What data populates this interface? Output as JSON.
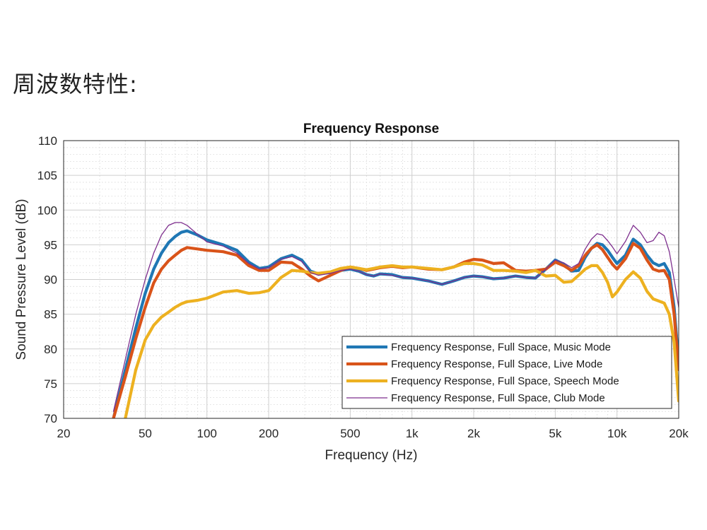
{
  "page": {
    "heading": "周波数特性:"
  },
  "chart_data": {
    "type": "line",
    "title": "Frequency Response",
    "xlabel": "Frequency (Hz)",
    "ylabel": "Sound Pressure Level (dB)",
    "xscale": "log",
    "xlim": [
      20,
      20000
    ],
    "ylim": [
      70,
      110
    ],
    "grid": true,
    "minor_grid": true,
    "x_ticks": [
      {
        "value": 20,
        "label": "20"
      },
      {
        "value": 50,
        "label": "50"
      },
      {
        "value": 100,
        "label": "100"
      },
      {
        "value": 200,
        "label": "200"
      },
      {
        "value": 500,
        "label": "500"
      },
      {
        "value": 1000,
        "label": "1k"
      },
      {
        "value": 2000,
        "label": "2k"
      },
      {
        "value": 5000,
        "label": "5k"
      },
      {
        "value": 10000,
        "label": "10k"
      },
      {
        "value": 20000,
        "label": "20k"
      }
    ],
    "y_ticks": [
      70,
      75,
      80,
      85,
      90,
      95,
      100,
      105,
      110
    ],
    "legend_position": "bottom-right",
    "series": [
      {
        "name": "Frequency Response, Full Space, Music Mode",
        "color": "#1f77b4",
        "width": "thick",
        "x": [
          35,
          40,
          45,
          50,
          55,
          60,
          65,
          70,
          75,
          80,
          90,
          100,
          120,
          140,
          160,
          180,
          200,
          230,
          260,
          290,
          320,
          350,
          400,
          450,
          500,
          550,
          600,
          650,
          700,
          800,
          900,
          1000,
          1200,
          1400,
          1600,
          1800,
          2000,
          2200,
          2500,
          2800,
          3200,
          3600,
          4000,
          4500,
          5000,
          5500,
          6000,
          6500,
          7000,
          7500,
          8000,
          8500,
          9000,
          9500,
          10000,
          11000,
          12000,
          13000,
          14000,
          15000,
          16000,
          17000,
          18000,
          19000,
          20000
        ],
        "y": [
          70,
          77,
          83,
          88,
          91.5,
          93.8,
          95.3,
          96.2,
          96.8,
          97,
          96.4,
          95.7,
          95,
          94.2,
          92.5,
          91.6,
          91.8,
          93,
          93.5,
          92.8,
          91.2,
          90.8,
          91,
          91.3,
          91.5,
          91.2,
          90.7,
          90.5,
          90.8,
          90.7,
          90.3,
          90.2,
          89.8,
          89.3,
          89.8,
          90.3,
          90.5,
          90.4,
          90.1,
          90.2,
          90.5,
          90.3,
          90.2,
          91.5,
          92.8,
          92.2,
          91.2,
          91.3,
          93.2,
          94.5,
          95.2,
          95,
          94.2,
          93.2,
          92.3,
          93.5,
          95.8,
          95,
          93.5,
          92.4,
          92,
          92.3,
          91,
          86,
          78
        ]
      },
      {
        "name": "Frequency Response, Full Space, Live Mode",
        "color": "#d95319",
        "width": "thick",
        "x": [
          35,
          40,
          45,
          50,
          55,
          60,
          65,
          70,
          75,
          80,
          90,
          100,
          120,
          140,
          160,
          180,
          200,
          230,
          260,
          290,
          320,
          350,
          400,
          450,
          500,
          550,
          600,
          650,
          700,
          800,
          900,
          1000,
          1200,
          1400,
          1600,
          1800,
          2000,
          2200,
          2500,
          2800,
          3200,
          3600,
          4000,
          4500,
          5000,
          5500,
          6000,
          6500,
          7000,
          7500,
          8000,
          8500,
          9000,
          9500,
          10000,
          11000,
          12000,
          13000,
          14000,
          15000,
          16000,
          17000,
          18000,
          19000,
          20000
        ],
        "y": [
          70,
          76,
          81.5,
          86,
          89.5,
          91.5,
          92.7,
          93.5,
          94.2,
          94.6,
          94.4,
          94.2,
          94,
          93.5,
          92,
          91.3,
          91.3,
          92.5,
          92.4,
          91.5,
          90.5,
          89.8,
          90.6,
          91.3,
          91.8,
          91.6,
          91.3,
          91.5,
          91.7,
          91.9,
          91.7,
          91.8,
          91.5,
          91.4,
          91.8,
          92.5,
          92.9,
          92.8,
          92.3,
          92.4,
          91.3,
          91.2,
          91.3,
          91.5,
          92.5,
          92,
          91.3,
          92,
          93.5,
          94.5,
          95,
          94.3,
          93.2,
          92.2,
          91.5,
          93,
          95.2,
          94.5,
          92.8,
          91.5,
          91.2,
          91.3,
          90,
          85,
          77
        ]
      },
      {
        "name": "Frequency Response, Full Space, Speech Mode",
        "color": "#edb120",
        "width": "thick",
        "x": [
          40,
          45,
          50,
          55,
          60,
          65,
          70,
          75,
          80,
          90,
          100,
          120,
          140,
          160,
          180,
          200,
          230,
          260,
          290,
          320,
          350,
          400,
          450,
          500,
          550,
          600,
          650,
          700,
          800,
          900,
          1000,
          1200,
          1400,
          1600,
          1800,
          2000,
          2200,
          2500,
          2800,
          3200,
          3600,
          4000,
          4500,
          5000,
          5500,
          6000,
          6500,
          7000,
          7500,
          8000,
          8500,
          9000,
          9500,
          10000,
          11000,
          12000,
          13000,
          14000,
          15000,
          16000,
          17000,
          18000,
          19000,
          20000
        ],
        "y": [
          70,
          77,
          81.3,
          83.4,
          84.6,
          85.3,
          86,
          86.5,
          86.8,
          87,
          87.3,
          88.2,
          88.4,
          88,
          88.1,
          88.4,
          90.3,
          91.3,
          91.2,
          91,
          90.9,
          91.1,
          91.6,
          91.8,
          91.6,
          91.4,
          91.6,
          91.8,
          92,
          91.8,
          91.8,
          91.6,
          91.4,
          91.8,
          92.3,
          92.3,
          92.1,
          91.3,
          91.3,
          91.2,
          91,
          91.3,
          90.5,
          90.6,
          89.6,
          89.7,
          90.6,
          91.5,
          92,
          92,
          91,
          89.6,
          87.5,
          88.2,
          90,
          91.1,
          90.2,
          88.3,
          87.2,
          86.9,
          86.6,
          85,
          81,
          72.5
        ]
      },
      {
        "name": "Frequency Response, Full Space, Club Mode",
        "color": "#7e2f8e",
        "width": "thin",
        "x": [
          35,
          40,
          45,
          50,
          55,
          60,
          65,
          70,
          75,
          80,
          90,
          100,
          120,
          140,
          160,
          180,
          200,
          230,
          260,
          290,
          320,
          350,
          400,
          450,
          500,
          550,
          600,
          650,
          700,
          800,
          900,
          1000,
          1200,
          1400,
          1600,
          1800,
          2000,
          2200,
          2500,
          2800,
          3200,
          3600,
          4000,
          4500,
          5000,
          5500,
          6000,
          6500,
          7000,
          7500,
          8000,
          8500,
          9000,
          9500,
          10000,
          11000,
          12000,
          13000,
          14000,
          15000,
          16000,
          17000,
          18000,
          19000,
          20000
        ],
        "y": [
          71,
          78.5,
          85,
          90,
          93.8,
          96.4,
          97.8,
          98.2,
          98.2,
          97.8,
          96.5,
          95.4,
          94.8,
          93.8,
          92.3,
          91.5,
          91.7,
          92.9,
          93.3,
          92.6,
          91,
          90.6,
          90.9,
          91.3,
          91.5,
          91.2,
          90.7,
          90.5,
          90.8,
          90.6,
          90.3,
          90.2,
          89.8,
          89.3,
          89.8,
          90.3,
          90.5,
          90.4,
          90.1,
          90.2,
          90.5,
          90.3,
          90.2,
          91.5,
          92.8,
          92.4,
          91.7,
          92.3,
          94.4,
          95.8,
          96.6,
          96.4,
          95.6,
          94.7,
          93.7,
          95.5,
          97.8,
          96.8,
          95.3,
          95.6,
          96.8,
          96.3,
          94,
          90,
          86
        ]
      }
    ]
  }
}
